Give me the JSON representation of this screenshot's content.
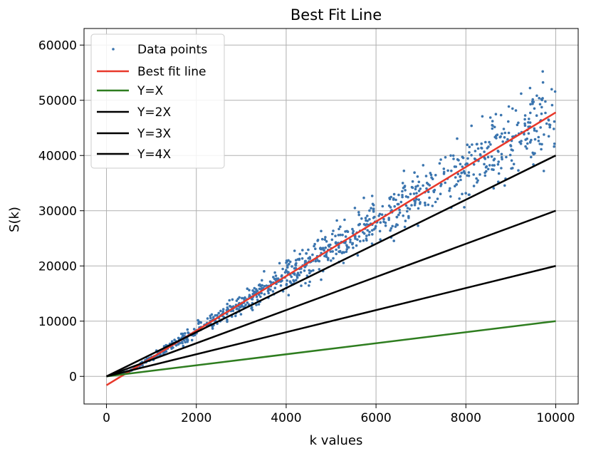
{
  "chart_data": {
    "type": "scatter",
    "title": "Best Fit Line",
    "xlabel": "k values",
    "ylabel": "S(k)",
    "xlim": [
      -500,
      10500
    ],
    "ylim": [
      -5000,
      63000
    ],
    "x_ticks": [
      0,
      2000,
      4000,
      6000,
      8000,
      10000
    ],
    "y_ticks": [
      0,
      10000,
      20000,
      30000,
      40000,
      50000,
      60000
    ],
    "grid": true,
    "legend_position": "top-left",
    "colors": {
      "points": "#3b75af",
      "best_fit": "#e8382a",
      "y_eq_x": "#2e7d1f",
      "multiples": "#000000"
    },
    "scatter_series": {
      "name": "Data points",
      "n_points": 1000,
      "x_range": [
        100,
        10000
      ],
      "trend_slope": 4.94,
      "trend_intercept": -1600,
      "spread_pct": 0.12
    },
    "line_series": [
      {
        "name": "Best fit line",
        "slope": 4.94,
        "intercept": -1600,
        "x": [
          0,
          10000
        ],
        "color": "#e8382a"
      },
      {
        "name": "Y=X",
        "slope": 1,
        "intercept": 0,
        "x": [
          0,
          10000
        ],
        "color": "#2e7d1f"
      },
      {
        "name": "Y=2X",
        "slope": 2,
        "intercept": 0,
        "x": [
          0,
          10000
        ],
        "color": "#000000"
      },
      {
        "name": "Y=3X",
        "slope": 3,
        "intercept": 0,
        "x": [
          0,
          10000
        ],
        "color": "#000000"
      },
      {
        "name": "Y=4X",
        "slope": 4,
        "intercept": 0,
        "x": [
          0,
          10000
        ],
        "color": "#000000"
      }
    ]
  }
}
